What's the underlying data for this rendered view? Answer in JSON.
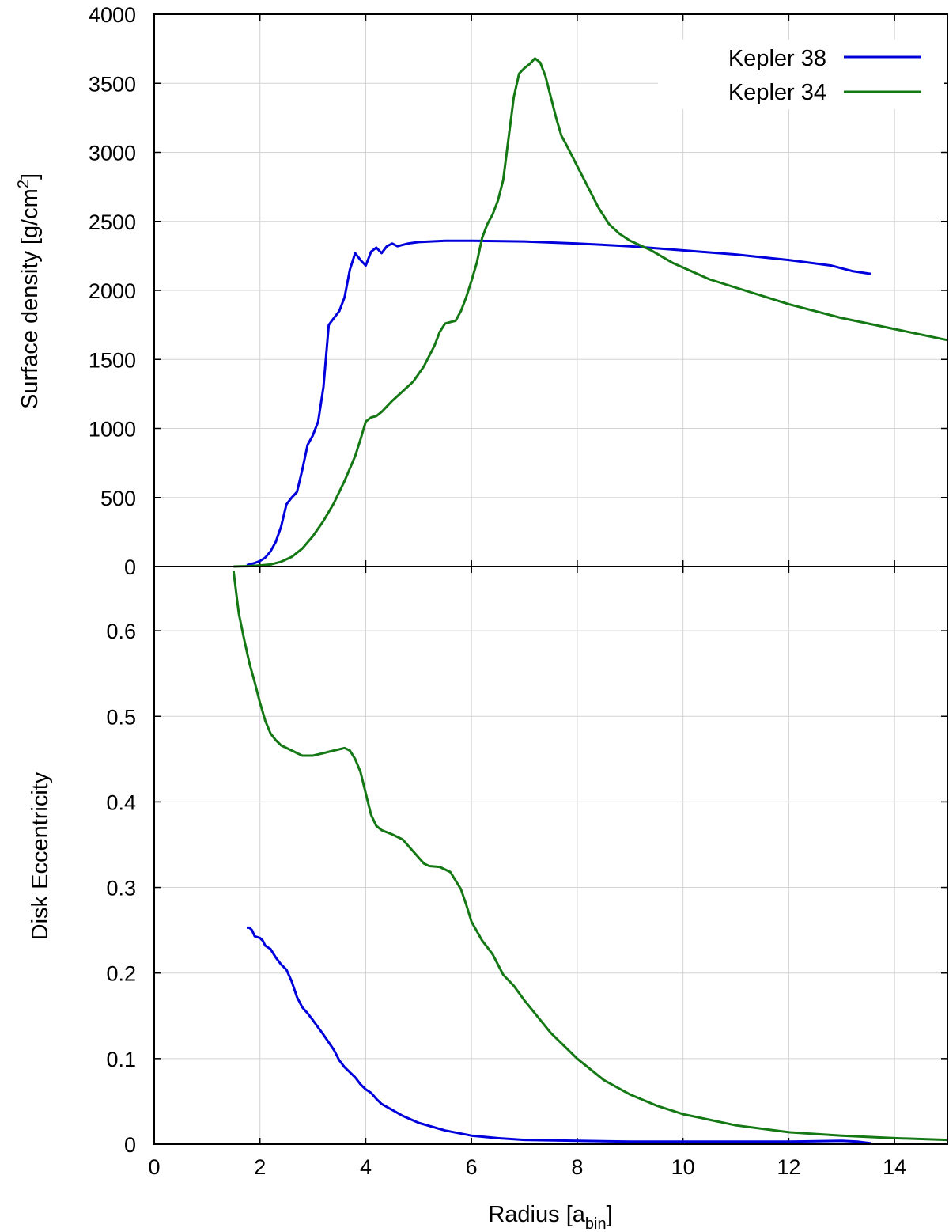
{
  "chart_data": [
    {
      "type": "line",
      "panel": "top",
      "ylabel_main": "Surface density [g/cm",
      "ylabel_sup": "2",
      "ylabel_close": "]",
      "xlim": [
        0,
        15
      ],
      "ylim": [
        0,
        4000
      ],
      "x_ticks": [
        0,
        2,
        4,
        6,
        8,
        10,
        12,
        14
      ],
      "y_ticks": [
        0,
        500,
        1000,
        1500,
        2000,
        2500,
        3000,
        3500,
        4000
      ],
      "grid": true,
      "legend_position": "top-right",
      "series": [
        {
          "name": "Kepler 38",
          "color": "#0000dd",
          "points": [
            [
              1.75,
              10
            ],
            [
              1.9,
              25
            ],
            [
              2.0,
              40
            ],
            [
              2.1,
              65
            ],
            [
              2.2,
              110
            ],
            [
              2.3,
              180
            ],
            [
              2.4,
              290
            ],
            [
              2.5,
              450
            ],
            [
              2.6,
              500
            ],
            [
              2.7,
              540
            ],
            [
              2.8,
              700
            ],
            [
              2.9,
              880
            ],
            [
              3.0,
              950
            ],
            [
              3.1,
              1050
            ],
            [
              3.2,
              1300
            ],
            [
              3.3,
              1750
            ],
            [
              3.4,
              1800
            ],
            [
              3.5,
              1850
            ],
            [
              3.6,
              1950
            ],
            [
              3.7,
              2150
            ],
            [
              3.8,
              2270
            ],
            [
              3.9,
              2220
            ],
            [
              4.0,
              2180
            ],
            [
              4.1,
              2280
            ],
            [
              4.2,
              2310
            ],
            [
              4.3,
              2270
            ],
            [
              4.4,
              2320
            ],
            [
              4.5,
              2340
            ],
            [
              4.6,
              2320
            ],
            [
              4.7,
              2330
            ],
            [
              4.8,
              2340
            ],
            [
              5.0,
              2350
            ],
            [
              5.5,
              2360
            ],
            [
              6.0,
              2360
            ],
            [
              7.0,
              2355
            ],
            [
              8.0,
              2340
            ],
            [
              9.0,
              2320
            ],
            [
              10.0,
              2290
            ],
            [
              11.0,
              2260
            ],
            [
              12.0,
              2220
            ],
            [
              12.8,
              2180
            ],
            [
              13.2,
              2140
            ],
            [
              13.55,
              2120
            ]
          ]
        },
        {
          "name": "Kepler 34",
          "color": "#147814",
          "points": [
            [
              1.5,
              0
            ],
            [
              1.8,
              3
            ],
            [
              2.0,
              8
            ],
            [
              2.2,
              15
            ],
            [
              2.4,
              35
            ],
            [
              2.6,
              70
            ],
            [
              2.8,
              130
            ],
            [
              3.0,
              220
            ],
            [
              3.2,
              330
            ],
            [
              3.4,
              460
            ],
            [
              3.6,
              620
            ],
            [
              3.8,
              800
            ],
            [
              3.9,
              920
            ],
            [
              4.0,
              1050
            ],
            [
              4.1,
              1080
            ],
            [
              4.2,
              1090
            ],
            [
              4.3,
              1120
            ],
            [
              4.5,
              1200
            ],
            [
              4.7,
              1270
            ],
            [
              4.9,
              1340
            ],
            [
              5.1,
              1450
            ],
            [
              5.3,
              1600
            ],
            [
              5.4,
              1700
            ],
            [
              5.5,
              1760
            ],
            [
              5.6,
              1770
            ],
            [
              5.7,
              1780
            ],
            [
              5.8,
              1850
            ],
            [
              5.9,
              1950
            ],
            [
              6.0,
              2070
            ],
            [
              6.1,
              2200
            ],
            [
              6.2,
              2380
            ],
            [
              6.3,
              2480
            ],
            [
              6.4,
              2550
            ],
            [
              6.5,
              2650
            ],
            [
              6.6,
              2800
            ],
            [
              6.7,
              3100
            ],
            [
              6.8,
              3400
            ],
            [
              6.9,
              3570
            ],
            [
              7.0,
              3610
            ],
            [
              7.1,
              3640
            ],
            [
              7.2,
              3680
            ],
            [
              7.3,
              3650
            ],
            [
              7.4,
              3550
            ],
            [
              7.5,
              3400
            ],
            [
              7.6,
              3250
            ],
            [
              7.7,
              3120
            ],
            [
              7.8,
              3050
            ],
            [
              8.0,
              2900
            ],
            [
              8.2,
              2750
            ],
            [
              8.4,
              2600
            ],
            [
              8.6,
              2480
            ],
            [
              8.8,
              2410
            ],
            [
              9.0,
              2360
            ],
            [
              9.4,
              2290
            ],
            [
              9.8,
              2200
            ],
            [
              10.5,
              2080
            ],
            [
              11.0,
              2020
            ],
            [
              12.0,
              1900
            ],
            [
              13.0,
              1800
            ],
            [
              14.0,
              1720
            ],
            [
              15.0,
              1640
            ]
          ]
        }
      ]
    },
    {
      "type": "line",
      "panel": "bottom",
      "ylabel": "Disk Eccentricity",
      "xlabel_main": "Radius [a",
      "xlabel_sub": "bin",
      "xlabel_close": "]",
      "xlim": [
        0,
        15
      ],
      "ylim": [
        0,
        0.675
      ],
      "x_ticks": [
        0,
        2,
        4,
        6,
        8,
        10,
        12,
        14
      ],
      "y_ticks": [
        0,
        0.1,
        0.2,
        0.3,
        0.4,
        0.5,
        0.6
      ],
      "grid": true,
      "series": [
        {
          "name": "Kepler 38",
          "color": "#0000dd",
          "points": [
            [
              1.75,
              0.253
            ],
            [
              1.8,
              0.253
            ],
            [
              1.85,
              0.25
            ],
            [
              1.9,
              0.243
            ],
            [
              2.0,
              0.241
            ],
            [
              2.05,
              0.238
            ],
            [
              2.1,
              0.232
            ],
            [
              2.2,
              0.228
            ],
            [
              2.3,
              0.218
            ],
            [
              2.4,
              0.21
            ],
            [
              2.5,
              0.204
            ],
            [
              2.6,
              0.19
            ],
            [
              2.7,
              0.172
            ],
            [
              2.8,
              0.16
            ],
            [
              2.9,
              0.153
            ],
            [
              3.0,
              0.145
            ],
            [
              3.2,
              0.128
            ],
            [
              3.4,
              0.11
            ],
            [
              3.5,
              0.098
            ],
            [
              3.6,
              0.09
            ],
            [
              3.8,
              0.078
            ],
            [
              3.9,
              0.07
            ],
            [
              4.0,
              0.064
            ],
            [
              4.1,
              0.06
            ],
            [
              4.2,
              0.053
            ],
            [
              4.3,
              0.047
            ],
            [
              4.5,
              0.04
            ],
            [
              4.7,
              0.033
            ],
            [
              5.0,
              0.025
            ],
            [
              5.5,
              0.016
            ],
            [
              6.0,
              0.01
            ],
            [
              6.5,
              0.007
            ],
            [
              7.0,
              0.005
            ],
            [
              8.0,
              0.004
            ],
            [
              9.0,
              0.003
            ],
            [
              10.0,
              0.003
            ],
            [
              11.0,
              0.003
            ],
            [
              12.0,
              0.003
            ],
            [
              13.0,
              0.004
            ],
            [
              13.3,
              0.003
            ],
            [
              13.55,
              0.001
            ]
          ]
        },
        {
          "name": "Kepler 34",
          "color": "#147814",
          "points": [
            [
              1.5,
              0.67
            ],
            [
              1.55,
              0.645
            ],
            [
              1.6,
              0.62
            ],
            [
              1.7,
              0.59
            ],
            [
              1.8,
              0.562
            ],
            [
              1.9,
              0.54
            ],
            [
              2.0,
              0.516
            ],
            [
              2.1,
              0.495
            ],
            [
              2.2,
              0.48
            ],
            [
              2.3,
              0.472
            ],
            [
              2.4,
              0.466
            ],
            [
              2.6,
              0.46
            ],
            [
              2.8,
              0.454
            ],
            [
              3.0,
              0.454
            ],
            [
              3.2,
              0.457
            ],
            [
              3.4,
              0.46
            ],
            [
              3.6,
              0.463
            ],
            [
              3.7,
              0.46
            ],
            [
              3.8,
              0.45
            ],
            [
              3.9,
              0.435
            ],
            [
              4.0,
              0.41
            ],
            [
              4.1,
              0.385
            ],
            [
              4.2,
              0.372
            ],
            [
              4.3,
              0.367
            ],
            [
              4.5,
              0.362
            ],
            [
              4.7,
              0.356
            ],
            [
              4.9,
              0.342
            ],
            [
              5.1,
              0.328
            ],
            [
              5.2,
              0.325
            ],
            [
              5.4,
              0.324
            ],
            [
              5.6,
              0.318
            ],
            [
              5.8,
              0.298
            ],
            [
              5.9,
              0.28
            ],
            [
              6.0,
              0.26
            ],
            [
              6.2,
              0.238
            ],
            [
              6.4,
              0.222
            ],
            [
              6.6,
              0.198
            ],
            [
              6.8,
              0.185
            ],
            [
              7.0,
              0.168
            ],
            [
              7.5,
              0.13
            ],
            [
              8.0,
              0.1
            ],
            [
              8.5,
              0.075
            ],
            [
              9.0,
              0.058
            ],
            [
              9.5,
              0.045
            ],
            [
              10.0,
              0.035
            ],
            [
              11.0,
              0.022
            ],
            [
              12.0,
              0.014
            ],
            [
              13.0,
              0.01
            ],
            [
              14.0,
              0.007
            ],
            [
              15.0,
              0.005
            ]
          ]
        }
      ]
    }
  ]
}
